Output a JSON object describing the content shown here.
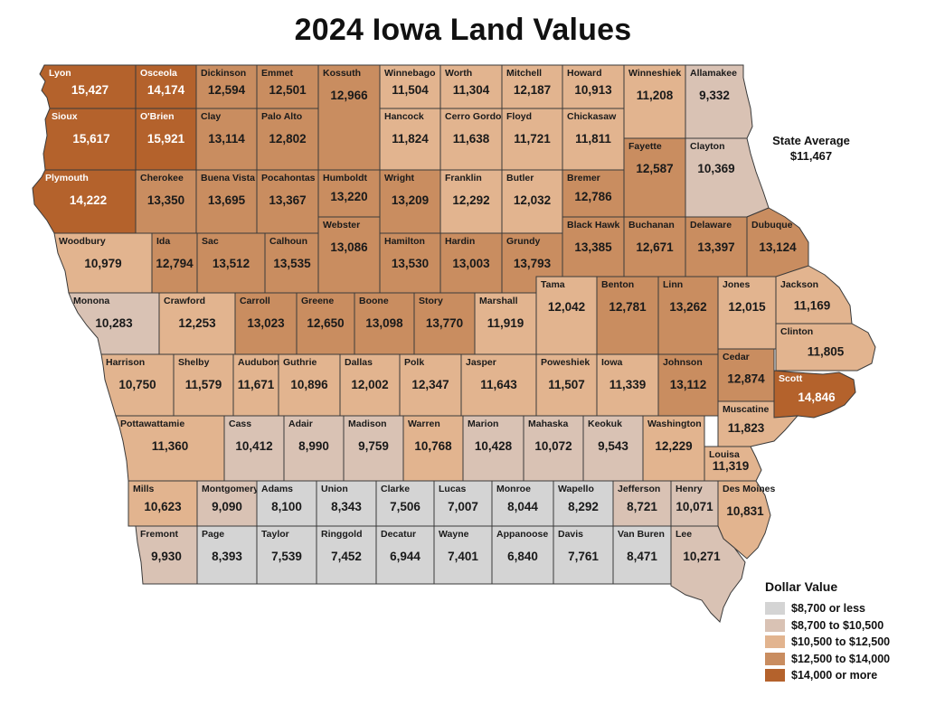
{
  "title": "2024 Iowa Land Values",
  "state_average": {
    "label": "State Average",
    "value": "$11,467"
  },
  "legend": {
    "title": "Dollar Value",
    "items": [
      {
        "label": "$8,700 or less",
        "color": "#d4d4d4"
      },
      {
        "label": "$8,700 to $10,500",
        "color": "#d9c2b4"
      },
      {
        "label": "$10,500 to $12,500",
        "color": "#e2b48f"
      },
      {
        "label": "$12,500 to $14,000",
        "color": "#c98d60"
      },
      {
        "label": "$14,000 or more",
        "color": "#b4622c"
      }
    ]
  },
  "counties": [
    {
      "name": "Lyon",
      "value": "15,427",
      "tier": 4
    },
    {
      "name": "Osceola",
      "value": "14,174",
      "tier": 4
    },
    {
      "name": "Dickinson",
      "value": "12,594",
      "tier": 3
    },
    {
      "name": "Emmet",
      "value": "12,501",
      "tier": 3
    },
    {
      "name": "Kossuth",
      "value": "12,966",
      "tier": 3
    },
    {
      "name": "Winnebago",
      "value": "11,504",
      "tier": 2
    },
    {
      "name": "Worth",
      "value": "11,304",
      "tier": 2
    },
    {
      "name": "Mitchell",
      "value": "12,187",
      "tier": 2
    },
    {
      "name": "Howard",
      "value": "10,913",
      "tier": 2
    },
    {
      "name": "Winneshiek",
      "value": "11,208",
      "tier": 2
    },
    {
      "name": "Allamakee",
      "value": "9,332",
      "tier": 1
    },
    {
      "name": "Sioux",
      "value": "15,617",
      "tier": 4
    },
    {
      "name": "O'Brien",
      "value": "15,921",
      "tier": 4
    },
    {
      "name": "Clay",
      "value": "13,114",
      "tier": 3
    },
    {
      "name": "Palo Alto",
      "value": "12,802",
      "tier": 3
    },
    {
      "name": "Hancock",
      "value": "11,824",
      "tier": 2
    },
    {
      "name": "Cerro Gordo",
      "value": "11,638",
      "tier": 2
    },
    {
      "name": "Floyd",
      "value": "11,721",
      "tier": 2
    },
    {
      "name": "Chickasaw",
      "value": "11,811",
      "tier": 2
    },
    {
      "name": "Fayette",
      "value": "12,587",
      "tier": 3
    },
    {
      "name": "Clayton",
      "value": "10,369",
      "tier": 1
    },
    {
      "name": "Plymouth",
      "value": "14,222",
      "tier": 4
    },
    {
      "name": "Cherokee",
      "value": "13,350",
      "tier": 3
    },
    {
      "name": "Buena Vista",
      "value": "13,695",
      "tier": 3
    },
    {
      "name": "Pocahontas",
      "value": "13,367",
      "tier": 3
    },
    {
      "name": "Humboldt",
      "value": "13,220",
      "tier": 3
    },
    {
      "name": "Wright",
      "value": "13,209",
      "tier": 3
    },
    {
      "name": "Franklin",
      "value": "12,292",
      "tier": 2
    },
    {
      "name": "Butler",
      "value": "12,032",
      "tier": 2
    },
    {
      "name": "Bremer",
      "value": "12,786",
      "tier": 3
    },
    {
      "name": "Black Hawk",
      "value": "13,385",
      "tier": 3
    },
    {
      "name": "Buchanan",
      "value": "12,671",
      "tier": 3
    },
    {
      "name": "Delaware",
      "value": "13,397",
      "tier": 3
    },
    {
      "name": "Dubuque",
      "value": "13,124",
      "tier": 3
    },
    {
      "name": "Woodbury",
      "value": "10,979",
      "tier": 2
    },
    {
      "name": "Ida",
      "value": "12,794",
      "tier": 3
    },
    {
      "name": "Sac",
      "value": "13,512",
      "tier": 3
    },
    {
      "name": "Calhoun",
      "value": "13,535",
      "tier": 3
    },
    {
      "name": "Webster",
      "value": "13,086",
      "tier": 3
    },
    {
      "name": "Hamilton",
      "value": "13,530",
      "tier": 3
    },
    {
      "name": "Hardin",
      "value": "13,003",
      "tier": 3
    },
    {
      "name": "Grundy",
      "value": "13,793",
      "tier": 3
    },
    {
      "name": "Monona",
      "value": "10,283",
      "tier": 1
    },
    {
      "name": "Crawford",
      "value": "12,253",
      "tier": 2
    },
    {
      "name": "Carroll",
      "value": "13,023",
      "tier": 3
    },
    {
      "name": "Greene",
      "value": "12,650",
      "tier": 3
    },
    {
      "name": "Boone",
      "value": "13,098",
      "tier": 3
    },
    {
      "name": "Story",
      "value": "13,770",
      "tier": 3
    },
    {
      "name": "Marshall",
      "value": "11,919",
      "tier": 2
    },
    {
      "name": "Tama",
      "value": "12,042",
      "tier": 2
    },
    {
      "name": "Benton",
      "value": "12,781",
      "tier": 3
    },
    {
      "name": "Linn",
      "value": "13,262",
      "tier": 3
    },
    {
      "name": "Jones",
      "value": "12,015",
      "tier": 2
    },
    {
      "name": "Jackson",
      "value": "11,169",
      "tier": 2
    },
    {
      "name": "Clinton",
      "value": "11,805",
      "tier": 2
    },
    {
      "name": "Harrison",
      "value": "10,750",
      "tier": 2
    },
    {
      "name": "Shelby",
      "value": "11,579",
      "tier": 2
    },
    {
      "name": "Audubon",
      "value": "11,671",
      "tier": 2
    },
    {
      "name": "Guthrie",
      "value": "10,896",
      "tier": 2
    },
    {
      "name": "Dallas",
      "value": "12,002",
      "tier": 2
    },
    {
      "name": "Polk",
      "value": "12,347",
      "tier": 2
    },
    {
      "name": "Jasper",
      "value": "11,643",
      "tier": 2
    },
    {
      "name": "Poweshiek",
      "value": "11,507",
      "tier": 2
    },
    {
      "name": "Iowa",
      "value": "11,339",
      "tier": 2
    },
    {
      "name": "Johnson",
      "value": "13,112",
      "tier": 3
    },
    {
      "name": "Cedar",
      "value": "12,874",
      "tier": 3
    },
    {
      "name": "Scott",
      "value": "14,846",
      "tier": 4
    },
    {
      "name": "Muscatine",
      "value": "11,823",
      "tier": 2
    },
    {
      "name": "Pottawattamie",
      "value": "11,360",
      "tier": 2
    },
    {
      "name": "Cass",
      "value": "10,412",
      "tier": 1
    },
    {
      "name": "Adair",
      "value": "8,990",
      "tier": 1
    },
    {
      "name": "Madison",
      "value": "9,759",
      "tier": 1
    },
    {
      "name": "Warren",
      "value": "10,768",
      "tier": 2
    },
    {
      "name": "Marion",
      "value": "10,428",
      "tier": 1
    },
    {
      "name": "Mahaska",
      "value": "10,072",
      "tier": 1
    },
    {
      "name": "Keokuk",
      "value": "9,543",
      "tier": 1
    },
    {
      "name": "Washington",
      "value": "12,229",
      "tier": 2
    },
    {
      "name": "Louisa",
      "value": "11,319",
      "tier": 2
    },
    {
      "name": "Mills",
      "value": "10,623",
      "tier": 2
    },
    {
      "name": "Montgomery",
      "value": "9,090",
      "tier": 1
    },
    {
      "name": "Adams",
      "value": "8,100",
      "tier": 0
    },
    {
      "name": "Union",
      "value": "8,343",
      "tier": 0
    },
    {
      "name": "Clarke",
      "value": "7,506",
      "tier": 0
    },
    {
      "name": "Lucas",
      "value": "7,007",
      "tier": 0
    },
    {
      "name": "Monroe",
      "value": "8,044",
      "tier": 0
    },
    {
      "name": "Wapello",
      "value": "8,292",
      "tier": 0
    },
    {
      "name": "Jefferson",
      "value": "8,721",
      "tier": 1
    },
    {
      "name": "Henry",
      "value": "10,071",
      "tier": 1
    },
    {
      "name": "Des Moines",
      "value": "10,831",
      "tier": 2
    },
    {
      "name": "Fremont",
      "value": "9,930",
      "tier": 1
    },
    {
      "name": "Page",
      "value": "8,393",
      "tier": 0
    },
    {
      "name": "Taylor",
      "value": "7,539",
      "tier": 0
    },
    {
      "name": "Ringgold",
      "value": "7,452",
      "tier": 0
    },
    {
      "name": "Decatur",
      "value": "6,944",
      "tier": 0
    },
    {
      "name": "Wayne",
      "value": "7,401",
      "tier": 0
    },
    {
      "name": "Appanoose",
      "value": "6,840",
      "tier": 0
    },
    {
      "name": "Davis",
      "value": "7,761",
      "tier": 0
    },
    {
      "name": "Van Buren",
      "value": "8,471",
      "tier": 0
    },
    {
      "name": "Lee",
      "value": "10,271",
      "tier": 1
    }
  ]
}
